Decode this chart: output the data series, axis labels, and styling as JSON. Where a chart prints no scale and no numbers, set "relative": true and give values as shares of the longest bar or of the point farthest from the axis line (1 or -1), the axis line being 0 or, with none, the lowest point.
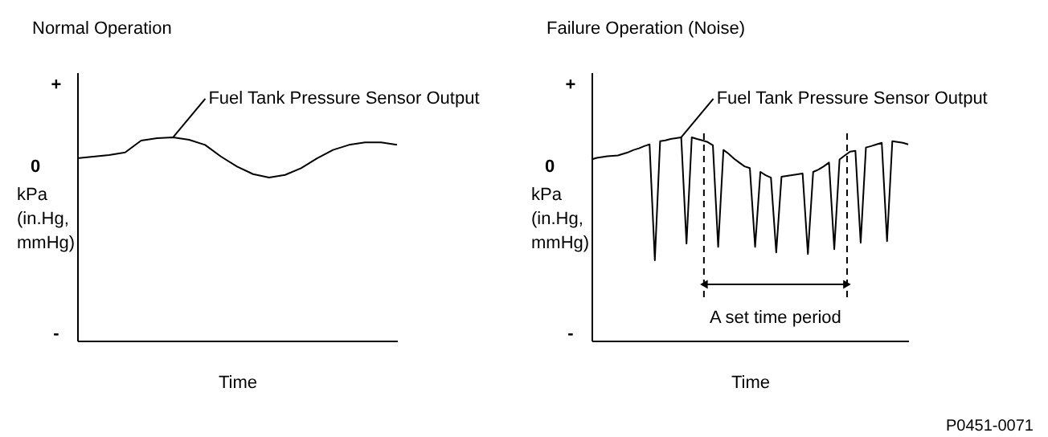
{
  "chart_data": [
    {
      "type": "line",
      "title": "Normal Operation",
      "xlabel": "Time",
      "ylabel": "kPa (in.Hg, mmHg)",
      "color": "#000000",
      "relative": true,
      "categories": [
        null,
        null,
        null,
        null,
        null,
        null,
        null,
        null,
        null,
        null,
        null,
        null,
        null,
        null,
        null,
        null,
        null,
        null,
        null,
        null,
        null
      ],
      "values": [
        0.897,
        0.905,
        0.913,
        0.926,
        0.984,
        0.996,
        1,
        0.988,
        0.963,
        0.905,
        0.856,
        0.819,
        0.802,
        0.815,
        0.848,
        0.897,
        0.938,
        0.963,
        0.975,
        0.975,
        0.963
      ],
      "annotations": [
        "+",
        "0",
        "-",
        "Fuel Tank Pressure Sensor Output"
      ]
    },
    {
      "type": "line",
      "title": "Failure Operation (Noise)",
      "xlabel": "Time",
      "ylabel": "kPa (in.Hg, mmHg)",
      "color": "#000000",
      "relative": true,
      "categories": [
        null,
        null,
        null,
        null,
        null,
        null,
        null,
        null,
        null,
        null,
        null,
        null,
        null,
        null,
        null,
        null,
        null,
        null,
        null,
        null,
        null,
        null,
        null,
        null,
        null,
        null,
        null,
        null,
        null,
        null,
        null,
        null,
        null,
        null,
        null,
        null,
        null,
        null,
        null,
        null,
        null,
        null,
        null,
        null,
        null,
        null,
        null,
        null,
        null,
        null,
        null,
        null,
        null,
        null,
        null,
        null,
        null,
        null,
        null,
        null,
        null
      ],
      "values": [
        0.891,
        0.899,
        0.903,
        0.907,
        0.909,
        0.911,
        0.919,
        0.927,
        0.938,
        0.946,
        0.957,
        0.965,
        0.395,
        0.981,
        0.985,
        0.992,
        0.996,
        1,
        0.477,
        1,
        0.992,
        0.985,
        0.977,
        0.961,
        0.461,
        0.938,
        0.919,
        0.895,
        0.876,
        0.857,
        0.849,
        0.461,
        0.83,
        0.814,
        0.802,
        0.434,
        0.806,
        0.81,
        0.814,
        0.818,
        0.822,
        0.426,
        0.83,
        0.841,
        0.857,
        0.876,
        0.45,
        0.891,
        0.911,
        0.93,
        0.934,
        0.481,
        0.95,
        0.957,
        0.965,
        0.973,
        0.489,
        0.981,
        0.977,
        0.973,
        0.965
      ],
      "annotations": [
        "+",
        "0",
        "-",
        "Fuel Tank Pressure Sensor Output",
        "A set time period",
        "P0451-0071"
      ]
    }
  ]
}
